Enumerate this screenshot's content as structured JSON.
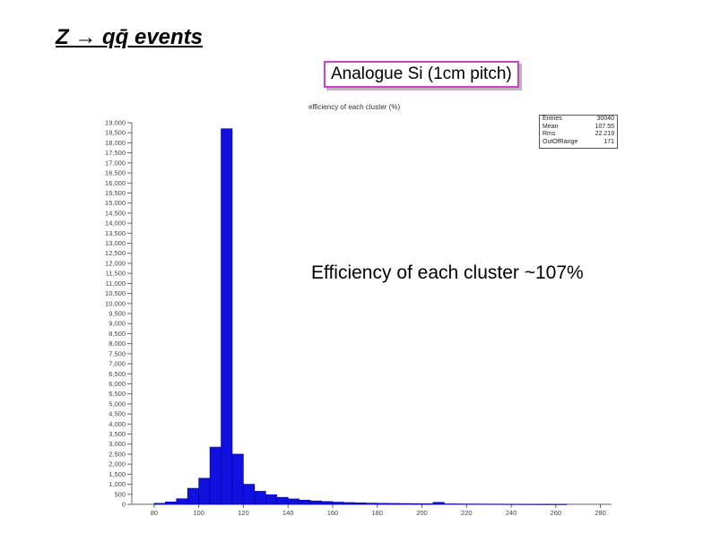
{
  "slide": {
    "title": "Z → qq̄ events",
    "box_label": "Analogue Si (1cm pitch)",
    "callout": "Efficiency of each cluster ~107%"
  },
  "stats_box": {
    "rows": [
      {
        "key": "Entries",
        "value": "30040"
      },
      {
        "key": "Mean",
        "value": "107.55"
      },
      {
        "key": "Rms",
        "value": "22.219"
      },
      {
        "key": "OutOfRange",
        "value": "171"
      }
    ]
  },
  "colors": {
    "bar": "#1010e0",
    "bar_edge": "#0000a0"
  },
  "chart_data": {
    "type": "bar",
    "title": "efficiency of each cluster (%)",
    "xlabel": "",
    "ylabel": "",
    "xlim": [
      70,
      285
    ],
    "ylim": [
      0,
      19000
    ],
    "bin_width": 5,
    "x_ticks": [
      "80",
      "100",
      "120",
      "140",
      "160",
      "180",
      "200",
      "220",
      "240",
      "260",
      "280"
    ],
    "y_ticks": [
      "0",
      "500",
      "1,000",
      "1,500",
      "2,000",
      "2,500",
      "3,000",
      "3,500",
      "4,000",
      "4,500",
      "5,000",
      "5,500",
      "6,000",
      "6,500",
      "7,000",
      "7,500",
      "8,000",
      "8,500",
      "9,000",
      "9,500",
      "10,000",
      "10,500",
      "11,000",
      "11,500",
      "12,000",
      "12,500",
      "13,000",
      "13,500",
      "14,000",
      "14,500",
      "15,000",
      "15,500",
      "16,000",
      "16,500",
      "17,000",
      "17,500",
      "18,000",
      "18,500",
      "19,000"
    ],
    "bins": [
      {
        "x": 82.5,
        "value": 50
      },
      {
        "x": 87.5,
        "value": 120
      },
      {
        "x": 92.5,
        "value": 280
      },
      {
        "x": 97.5,
        "value": 800
      },
      {
        "x": 102.5,
        "value": 1300
      },
      {
        "x": 107.5,
        "value": 2850
      },
      {
        "x": 112.5,
        "value": 18700
      },
      {
        "x": 117.5,
        "value": 2500
      },
      {
        "x": 122.5,
        "value": 1000
      },
      {
        "x": 127.5,
        "value": 650
      },
      {
        "x": 132.5,
        "value": 480
      },
      {
        "x": 137.5,
        "value": 350
      },
      {
        "x": 142.5,
        "value": 270
      },
      {
        "x": 147.5,
        "value": 210
      },
      {
        "x": 152.5,
        "value": 170
      },
      {
        "x": 157.5,
        "value": 140
      },
      {
        "x": 162.5,
        "value": 110
      },
      {
        "x": 167.5,
        "value": 90
      },
      {
        "x": 172.5,
        "value": 75
      },
      {
        "x": 177.5,
        "value": 60
      },
      {
        "x": 182.5,
        "value": 50
      },
      {
        "x": 187.5,
        "value": 45
      },
      {
        "x": 192.5,
        "value": 40
      },
      {
        "x": 197.5,
        "value": 35
      },
      {
        "x": 202.5,
        "value": 30
      },
      {
        "x": 207.5,
        "value": 100
      },
      {
        "x": 212.5,
        "value": 25
      },
      {
        "x": 217.5,
        "value": 20
      },
      {
        "x": 222.5,
        "value": 18
      },
      {
        "x": 227.5,
        "value": 15
      },
      {
        "x": 232.5,
        "value": 12
      },
      {
        "x": 237.5,
        "value": 10
      },
      {
        "x": 242.5,
        "value": 8
      },
      {
        "x": 247.5,
        "value": 6
      },
      {
        "x": 252.5,
        "value": 5
      },
      {
        "x": 257.5,
        "value": 4
      },
      {
        "x": 262.5,
        "value": 3
      }
    ]
  }
}
